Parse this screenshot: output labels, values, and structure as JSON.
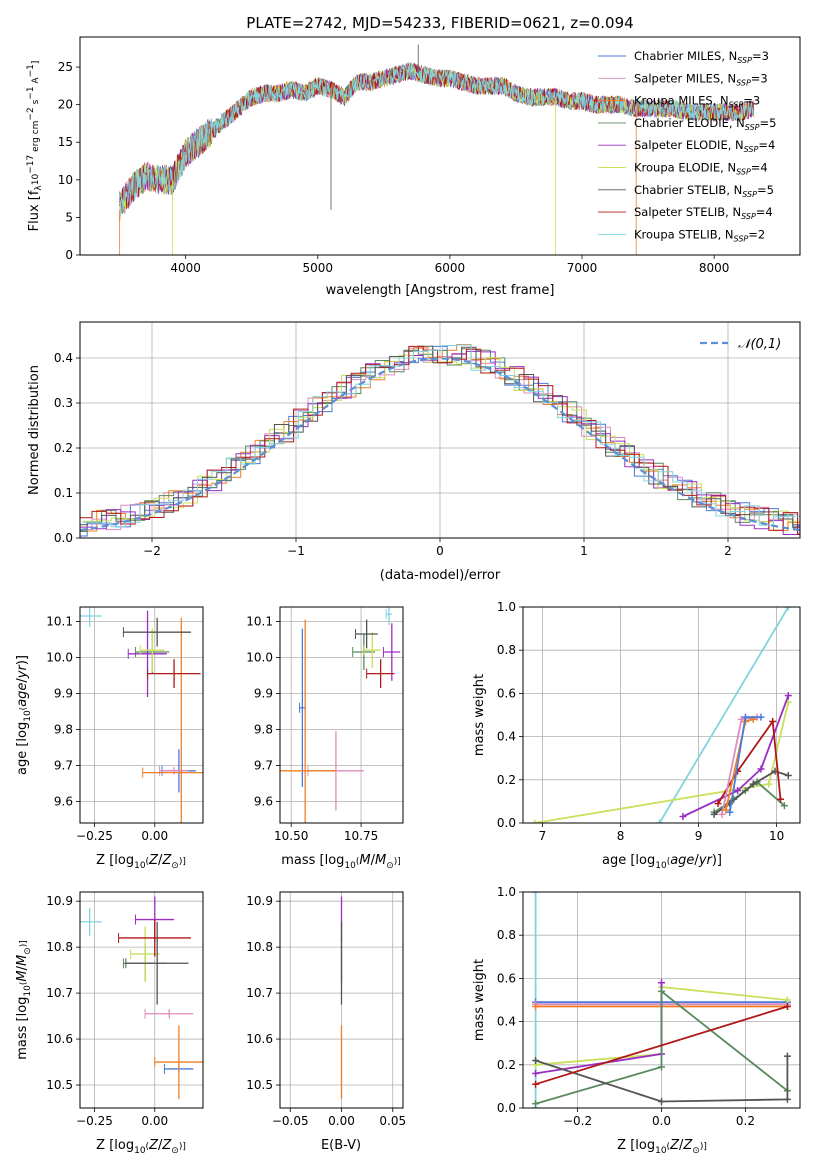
{
  "title": "PLATE=2742, MJD=54233, FIBERID=0621, z=0.094",
  "colors": {
    "chabrier_miles": "#4c7ad8",
    "salpeter_miles": "#e08bc0",
    "kroupa_miles": "#f07f25",
    "chabrier_elodie": "#5a8a5e",
    "salpeter_elodie": "#9a2ec4",
    "kroupa_elodie": "#c8e05a",
    "chabrier_stelib": "#555555",
    "salpeter_stelib": "#b01818",
    "kroupa_stelib": "#7fd4e0",
    "normal": "#5b8fd6"
  },
  "chart_data": [
    {
      "id": "spectrum",
      "type": "line",
      "xlabel": "wavelength [Angstrom, rest frame]",
      "ylabel": "Flux [f_λ10^-17 erg cm^-2 s^-1 A^-1]",
      "xlim": [
        3200,
        8650
      ],
      "ylim": [
        0,
        29
      ],
      "xticks": [
        4000,
        5000,
        6000,
        7000,
        8000
      ],
      "yticks": [
        0,
        5,
        10,
        15,
        20,
        25
      ],
      "grid": false,
      "legend_position": "upper right",
      "x": [
        3500,
        3600,
        3700,
        3800,
        3900,
        4000,
        4100,
        4200,
        4300,
        4400,
        4500,
        4600,
        4700,
        4800,
        4900,
        5000,
        5100,
        5200,
        5300,
        5400,
        5500,
        5600,
        5700,
        5800,
        5900,
        6000,
        6100,
        6200,
        6300,
        6400,
        6500,
        6600,
        6700,
        6800,
        6900,
        7000,
        7100,
        7200,
        7300,
        7400,
        7500,
        7600,
        7700,
        7800,
        7900,
        8000,
        8100,
        8200,
        8300
      ],
      "series": [
        {
          "name": "Chabrier MILES, N_SSP=3",
          "color_key": "chabrier_miles"
        },
        {
          "name": "Salpeter MILES, N_SSP=3",
          "color_key": "salpeter_miles"
        },
        {
          "name": "Kroupa MILES, N_SSP=3",
          "color_key": "kroupa_miles"
        },
        {
          "name": "Chabrier ELODIE, N_SSP=5",
          "color_key": "chabrier_elodie"
        },
        {
          "name": "Salpeter ELODIE, N_SSP=4",
          "color_key": "salpeter_elodie"
        },
        {
          "name": "Kroupa ELODIE, N_SSP=4",
          "color_key": "kroupa_elodie"
        },
        {
          "name": "Chabrier STELIB, N_SSP=5",
          "color_key": "chabrier_stelib",
          "values": [
            6.5,
            9.0,
            10.5,
            10.0,
            10.0,
            13.5,
            15.0,
            16.5,
            18.0,
            19.5,
            21.0,
            21.5,
            21.5,
            22.0,
            21.5,
            22.5,
            22.0,
            21.0,
            23.0,
            23.0,
            23.5,
            24.0,
            24.5,
            24.0,
            23.5,
            23.5,
            23.0,
            22.5,
            22.5,
            22.5,
            21.5,
            21.0,
            21.0,
            21.0,
            20.5,
            20.5,
            20.0,
            20.0,
            20.0,
            19.5,
            19.5,
            19.5,
            19.5,
            19.0,
            19.0,
            19.0,
            19.0,
            19.0,
            19.5
          ]
        },
        {
          "name": "Salpeter STELIB, N_SSP=4",
          "color_key": "salpeter_stelib"
        },
        {
          "name": "Kroupa STELIB, N_SSP=2",
          "color_key": "kroupa_stelib",
          "values": [
            7.0,
            9.5,
            10.5,
            10.5,
            10.5,
            14.0,
            16.0,
            17.0,
            18.5,
            19.5,
            21.0,
            21.5,
            22.0,
            22.0,
            21.5,
            22.5,
            22.0,
            21.5,
            22.5,
            23.0,
            23.5,
            23.5,
            24.0,
            24.0,
            23.5,
            23.0,
            23.0,
            22.5,
            22.5,
            22.0,
            21.5,
            21.5,
            21.0,
            21.0,
            20.5,
            20.5,
            20.0,
            20.0,
            20.0,
            19.5,
            19.5,
            19.5,
            19.5,
            19.0,
            19.0,
            19.0,
            19.0,
            19.0,
            19.5
          ]
        }
      ],
      "spikes": [
        {
          "x": 5100,
          "y": 6.0
        },
        {
          "x": 5760,
          "y": 28.0
        }
      ]
    },
    {
      "id": "residuals",
      "type": "histogram",
      "xlabel": "(data-model)/error",
      "ylabel": "Normed distribution",
      "xlim": [
        -2.5,
        2.5
      ],
      "ylim": [
        0,
        0.48
      ],
      "xticks": [
        -2,
        -1,
        0,
        1,
        2
      ],
      "xtick_labels": [
        "−2",
        "−1",
        "0",
        "1",
        "2"
      ],
      "yticks": [
        0.0,
        0.1,
        0.2,
        0.3,
        0.4
      ],
      "grid": true,
      "legend": "𝒩(0,1)",
      "legend_position": "upper right",
      "bin_width": 0.1,
      "curve": "normal pdf, mean 0, sigma 1"
    },
    {
      "id": "age_vs_Z",
      "type": "errorbar",
      "xlabel": "Z [log10(Z/Z⊙)]",
      "ylabel": "age [log10(age/yr)]",
      "xlim": [
        -0.31,
        0.2
      ],
      "ylim": [
        9.54,
        10.14
      ],
      "xticks": [
        -0.25,
        0.0
      ],
      "xtick_labels": [
        "−0.25",
        "0.00"
      ],
      "yticks": [
        9.6,
        9.7,
        9.8,
        9.9,
        10.0,
        10.1
      ],
      "grid": true,
      "points": [
        {
          "color_key": "chabrier_miles",
          "x": 0.1,
          "y": 9.685,
          "xerr": 0.07,
          "yerr": 0.06
        },
        {
          "color_key": "salpeter_miles",
          "x": 0.08,
          "y": 9.685,
          "xerr": 0.06,
          "yerr": 0.01
        },
        {
          "color_key": "kroupa_miles",
          "x": 0.11,
          "y": 9.68,
          "xerr": 0.16,
          "yerr": 0.43
        },
        {
          "color_key": "chabrier_elodie",
          "x": -0.01,
          "y": 10.015,
          "xerr": 0.07,
          "yerr": 0.06
        },
        {
          "color_key": "salpeter_elodie",
          "x": -0.03,
          "y": 10.01,
          "xerr": 0.08,
          "yerr": 0.12
        },
        {
          "color_key": "kroupa_elodie",
          "x": -0.01,
          "y": 10.02,
          "xerr": 0.05,
          "yerr": 0.06
        },
        {
          "color_key": "chabrier_stelib",
          "x": 0.01,
          "y": 10.07,
          "xerr": 0.14,
          "yerr": 0.04
        },
        {
          "color_key": "salpeter_stelib",
          "x": 0.08,
          "y": 9.955,
          "xerr": 0.11,
          "yerr": 0.04
        },
        {
          "color_key": "kroupa_stelib",
          "x": -0.27,
          "y": 10.115,
          "xerr": 0.05,
          "yerr": 0.03
        }
      ]
    },
    {
      "id": "age_vs_mass",
      "type": "errorbar",
      "xlabel": "mass [log10(M/M⊙)]",
      "ylabel": "",
      "xlim": [
        10.46,
        10.9
      ],
      "ylim": [
        9.54,
        10.14
      ],
      "xticks": [
        10.5,
        10.75
      ],
      "xtick_labels": [
        "10.50",
        "10.75"
      ],
      "yticks": [
        9.6,
        9.7,
        9.8,
        9.9,
        10.0,
        10.1
      ],
      "grid": true,
      "points": [
        {
          "color_key": "chabrier_miles",
          "x": 10.54,
          "y": 9.86,
          "xerr": 0.01,
          "yerr": 0.22
        },
        {
          "color_key": "salpeter_miles",
          "x": 10.66,
          "y": 9.685,
          "xerr": 0.1,
          "yerr": 0.11
        },
        {
          "color_key": "kroupa_miles",
          "x": 10.55,
          "y": 9.685,
          "xerr": 0.11,
          "yerr": 0.42
        },
        {
          "color_key": "chabrier_elodie",
          "x": 10.76,
          "y": 10.015,
          "xerr": 0.04,
          "yerr": 0.05
        },
        {
          "color_key": "salpeter_elodie",
          "x": 10.86,
          "y": 10.015,
          "xerr": 0.03,
          "yerr": 0.08
        },
        {
          "color_key": "kroupa_elodie",
          "x": 10.79,
          "y": 10.02,
          "xerr": 0.03,
          "yerr": 0.05
        },
        {
          "color_key": "chabrier_stelib",
          "x": 10.77,
          "y": 10.065,
          "xerr": 0.04,
          "yerr": 0.04
        },
        {
          "color_key": "salpeter_stelib",
          "x": 10.82,
          "y": 9.955,
          "xerr": 0.05,
          "yerr": 0.04
        },
        {
          "color_key": "kroupa_stelib",
          "x": 10.85,
          "y": 10.12,
          "xerr": 0.01,
          "yerr": 0.03
        }
      ]
    },
    {
      "id": "weight_vs_age",
      "type": "line",
      "xlabel": "age [log10(age/yr)]",
      "ylabel": "mass weight",
      "xlim": [
        6.75,
        10.3
      ],
      "ylim": [
        0,
        1.0
      ],
      "xticks": [
        7,
        8,
        9,
        10
      ],
      "yticks": [
        0.0,
        0.2,
        0.4,
        0.6,
        0.8,
        1.0
      ],
      "grid": true,
      "series": [
        {
          "color_key": "kroupa_stelib",
          "x": [
            8.5,
            10.15
          ],
          "y": [
            0.0,
            1.0
          ]
        },
        {
          "color_key": "kroupa_elodie",
          "x": [
            6.9,
            9.9,
            10.15
          ],
          "y": [
            0.0,
            0.18,
            0.56
          ]
        },
        {
          "color_key": "salpeter_elodie",
          "x": [
            8.8,
            9.5,
            9.8,
            10.15
          ],
          "y": [
            0.03,
            0.15,
            0.25,
            0.59
          ]
        },
        {
          "color_key": "chabrier_elodie",
          "x": [
            9.2,
            9.45,
            9.6,
            9.75,
            10.1
          ],
          "y": [
            0.05,
            0.11,
            0.15,
            0.19,
            0.08
          ]
        },
        {
          "color_key": "chabrier_stelib",
          "x": [
            9.2,
            9.4,
            9.7,
            9.98,
            10.15
          ],
          "y": [
            0.04,
            0.09,
            0.18,
            0.24,
            0.22
          ]
        },
        {
          "color_key": "salpeter_stelib",
          "x": [
            9.25,
            9.5,
            9.95,
            10.05
          ],
          "y": [
            0.09,
            0.24,
            0.47,
            0.11
          ]
        },
        {
          "color_key": "salpeter_miles",
          "x": [
            9.3,
            9.55,
            9.75
          ],
          "y": [
            0.04,
            0.48,
            0.49
          ]
        },
        {
          "color_key": "kroupa_miles",
          "x": [
            9.35,
            9.6,
            9.7
          ],
          "y": [
            0.06,
            0.47,
            0.48
          ]
        },
        {
          "color_key": "chabrier_miles",
          "x": [
            9.4,
            9.6,
            9.8
          ],
          "y": [
            0.05,
            0.49,
            0.49
          ]
        }
      ]
    },
    {
      "id": "mass_vs_Z",
      "type": "errorbar",
      "xlabel": "Z [log10(Z/Z⊙)]",
      "ylabel": "mass [log10(M/M⊙)]",
      "xlim": [
        -0.31,
        0.2
      ],
      "ylim": [
        10.45,
        10.92
      ],
      "xticks": [
        -0.25,
        0.0
      ],
      "xtick_labels": [
        "−0.25",
        "0.00"
      ],
      "yticks": [
        10.5,
        10.6,
        10.7,
        10.8,
        10.9
      ],
      "grid": true,
      "points": [
        {
          "color_key": "chabrier_miles",
          "x": 0.1,
          "y": 10.535,
          "xerr": 0.06,
          "yerr": 0.01
        },
        {
          "color_key": "salpeter_miles",
          "x": 0.06,
          "y": 10.655,
          "xerr": 0.1,
          "yerr": 0.01
        },
        {
          "color_key": "kroupa_miles",
          "x": 0.1,
          "y": 10.55,
          "xerr": 0.1,
          "yerr": 0.08
        },
        {
          "color_key": "chabrier_elodie",
          "x": -0.04,
          "y": 10.765,
          "xerr": 0.09,
          "yerr": 0.04
        },
        {
          "color_key": "salpeter_elodie",
          "x": 0.0,
          "y": 10.86,
          "xerr": 0.08,
          "yerr": 0.05
        },
        {
          "color_key": "kroupa_elodie",
          "x": -0.04,
          "y": 10.785,
          "xerr": 0.06,
          "yerr": 0.06
        },
        {
          "color_key": "chabrier_stelib",
          "x": 0.01,
          "y": 10.765,
          "xerr": 0.13,
          "yerr": 0.09
        },
        {
          "color_key": "salpeter_stelib",
          "x": 0.0,
          "y": 10.82,
          "xerr": 0.15,
          "yerr": 0.04
        },
        {
          "color_key": "kroupa_stelib",
          "x": -0.27,
          "y": 10.855,
          "xerr": 0.05,
          "yerr": 0.03
        }
      ]
    },
    {
      "id": "mass_vs_EBV",
      "type": "errorbar",
      "xlabel": "E(B-V)",
      "ylabel": "",
      "xlim": [
        -0.06,
        0.06
      ],
      "ylim": [
        10.45,
        10.92
      ],
      "xticks": [
        -0.05,
        0.0,
        0.05
      ],
      "xtick_labels": [
        "−0.05",
        "0.00",
        "0.05"
      ],
      "yticks": [
        10.5,
        10.6,
        10.7,
        10.8,
        10.9
      ],
      "grid": true,
      "points": [
        {
          "color_key": "kroupa_miles",
          "x": 0.0,
          "y": 10.55,
          "xerr": 0.0,
          "yerr": 0.08
        },
        {
          "color_key": "salpeter_elodie",
          "x": 0.0,
          "y": 10.86,
          "xerr": 0.0,
          "yerr": 0.05
        },
        {
          "color_key": "chabrier_elodie",
          "x": 0.0,
          "y": 10.765,
          "xerr": 0.0,
          "yerr": 0.04
        },
        {
          "color_key": "chabrier_stelib",
          "x": 0.0,
          "y": 10.765,
          "xerr": 0.0,
          "yerr": 0.09
        }
      ]
    },
    {
      "id": "weight_vs_Z",
      "type": "line",
      "xlabel": "Z [log10(Z/Z⊙)]",
      "ylabel": "mass weight",
      "xlim": [
        -0.33,
        0.33
      ],
      "ylim": [
        0,
        1.0
      ],
      "xticks": [
        -0.2,
        0.0,
        0.2
      ],
      "xtick_labels": [
        "−0.2",
        "0.0",
        "0.2"
      ],
      "yticks": [
        0.0,
        0.2,
        0.4,
        0.6,
        0.8,
        1.0
      ],
      "grid": true,
      "series": [
        {
          "color_key": "kroupa_stelib",
          "x": [
            -0.3,
            -0.3
          ],
          "y": [
            0.0,
            1.0
          ]
        },
        {
          "color_key": "chabrier_miles",
          "x": [
            -0.3,
            0.3
          ],
          "y": [
            0.49,
            0.49
          ]
        },
        {
          "color_key": "salpeter_miles",
          "x": [
            -0.3,
            0.3
          ],
          "y": [
            0.48,
            0.48
          ]
        },
        {
          "color_key": "kroupa_miles",
          "x": [
            -0.3,
            0.3
          ],
          "y": [
            0.47,
            0.47
          ]
        },
        {
          "color_key": "kroupa_elodie",
          "x": [
            -0.3,
            0.0,
            0.0,
            0.3
          ],
          "y": [
            0.2,
            0.25,
            0.56,
            0.5
          ]
        },
        {
          "color_key": "salpeter_elodie",
          "x": [
            -0.3,
            0.0,
            0.0
          ],
          "y": [
            0.16,
            0.25,
            0.58
          ]
        },
        {
          "color_key": "chabrier_elodie",
          "x": [
            -0.3,
            0.0,
            0.0,
            0.3
          ],
          "y": [
            0.02,
            0.19,
            0.54,
            0.08
          ]
        },
        {
          "color_key": "chabrier_stelib",
          "x": [
            -0.3,
            0.0,
            0.3,
            0.3
          ],
          "y": [
            0.22,
            0.03,
            0.04,
            0.24
          ]
        },
        {
          "color_key": "salpeter_stelib",
          "x": [
            -0.3,
            0.3
          ],
          "y": [
            0.11,
            0.47
          ]
        }
      ]
    }
  ]
}
